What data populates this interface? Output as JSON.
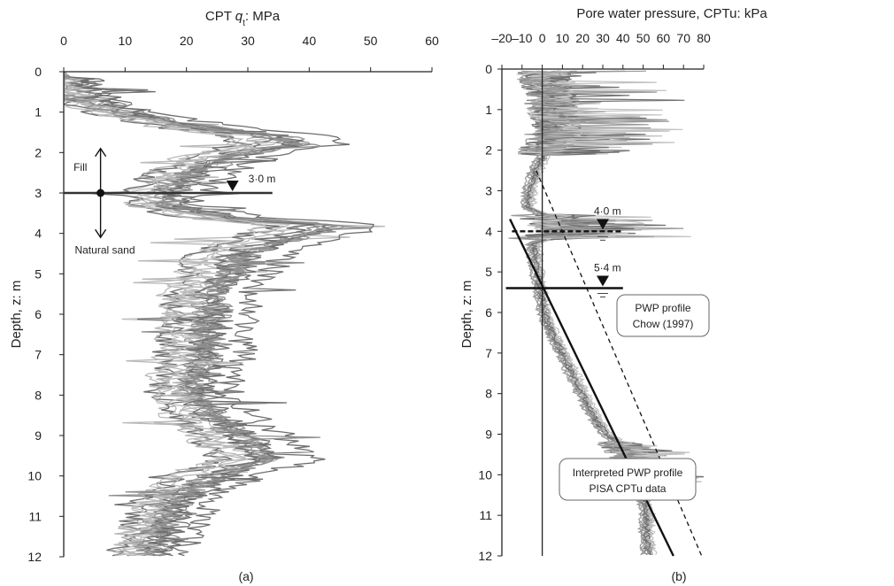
{
  "chart_data": [
    {
      "type": "line",
      "panel_label": "(a)",
      "title_prefix": "CPT ",
      "title_var": "q",
      "title_sub": "t",
      "title_suffix": ": MPa",
      "ylabel": "Depth, z: m",
      "xlim": [
        0,
        60
      ],
      "ylim": [
        12,
        0
      ],
      "xticks": [
        "0",
        "10",
        "20",
        "30",
        "40",
        "50",
        "60"
      ],
      "yticks": [
        "0",
        "1",
        "2",
        "3",
        "4",
        "5",
        "6",
        "7",
        "8",
        "9",
        "10",
        "11",
        "12"
      ],
      "colors": {
        "dark": "#6e6e6e",
        "mid": "#8f8f8f",
        "light": "#b9b9b9",
        "axis": "#222222",
        "marker": "#333333"
      },
      "water_table": {
        "depth": 3.0,
        "label": "3·0 m",
        "x_from": 0,
        "x_to": 34
      },
      "annotations": {
        "fill": "Fill",
        "natural": "Natural sand"
      },
      "mean_profile": [
        [
          0,
          0.8
        ],
        [
          0.4,
          2
        ],
        [
          0.7,
          5
        ],
        [
          1.0,
          10
        ],
        [
          1.3,
          20
        ],
        [
          1.6,
          36
        ],
        [
          1.8,
          38
        ],
        [
          2.1,
          28
        ],
        [
          2.5,
          22
        ],
        [
          2.8,
          19
        ],
        [
          3.0,
          18
        ],
        [
          3.3,
          17
        ],
        [
          3.6,
          28
        ],
        [
          3.8,
          45
        ],
        [
          4.1,
          38
        ],
        [
          4.5,
          30
        ],
        [
          5.0,
          28
        ],
        [
          5.5,
          25
        ],
        [
          6.0,
          25
        ],
        [
          6.5,
          24
        ],
        [
          7.0,
          24
        ],
        [
          7.5,
          23
        ],
        [
          8.0,
          22
        ],
        [
          8.5,
          25
        ],
        [
          9.0,
          30
        ],
        [
          9.3,
          32
        ],
        [
          9.6,
          34
        ],
        [
          10.0,
          26
        ],
        [
          10.5,
          20
        ],
        [
          11.0,
          18
        ],
        [
          11.5,
          16
        ],
        [
          12.0,
          15
        ]
      ],
      "series_count": 14
    },
    {
      "type": "line",
      "panel_label": "(b)",
      "title": "Pore water pressure, CPTu: kPa",
      "ylabel": "Depth, z: m",
      "xlim": [
        -20,
        80
      ],
      "ylim": [
        12,
        0
      ],
      "xticks": [
        "–20",
        "–10",
        "0",
        "10",
        "20",
        "30",
        "40",
        "50",
        "60",
        "70",
        "80"
      ],
      "yticks": [
        "0",
        "1",
        "2",
        "3",
        "4",
        "5",
        "6",
        "7",
        "8",
        "9",
        "10",
        "11",
        "12"
      ],
      "colors": {
        "dark": "#707070",
        "mid": "#999999",
        "light": "#c2c2c2",
        "axis": "#222222"
      },
      "water_tables": [
        {
          "depth": 4.0,
          "label": "4·0 m",
          "style": "dashed",
          "x_from": -15,
          "x_to": 40
        },
        {
          "depth": 5.4,
          "label": "5·4 m",
          "style": "solid",
          "x_from": -18,
          "x_to": 40
        }
      ],
      "reference_lines": [
        {
          "name": "PISA CPTu data",
          "style": "solid",
          "points": [
            [
              -16,
              3.7
            ],
            [
              65,
              12
            ]
          ]
        },
        {
          "name": "Chow (1997)",
          "style": "dashed",
          "points": [
            [
              -3,
              2.5
            ],
            [
              79,
              12
            ]
          ]
        }
      ],
      "callouts": {
        "pwp_chow": [
          "PWP profile",
          "Chow (1997)"
        ],
        "pwp_pisa": [
          "Interpreted PWP profile",
          "PISA CPTu data"
        ]
      },
      "mean_profile": [
        [
          0.1,
          1
        ],
        [
          0.5,
          3
        ],
        [
          1.0,
          6
        ],
        [
          1.5,
          8
        ],
        [
          2.0,
          2
        ],
        [
          2.5,
          -3
        ],
        [
          3.0,
          -6
        ],
        [
          3.4,
          -7
        ],
        [
          3.8,
          8
        ],
        [
          4.0,
          15
        ],
        [
          4.3,
          -4
        ],
        [
          4.8,
          -3
        ],
        [
          5.4,
          -1
        ],
        [
          6.0,
          1
        ],
        [
          6.5,
          5
        ],
        [
          7.0,
          10
        ],
        [
          7.5,
          15
        ],
        [
          8.0,
          20
        ],
        [
          8.5,
          25
        ],
        [
          9.0,
          32
        ],
        [
          9.5,
          45
        ],
        [
          10.0,
          48
        ],
        [
          10.5,
          50
        ],
        [
          11.0,
          52
        ],
        [
          11.5,
          52
        ],
        [
          12.0,
          53
        ]
      ],
      "series_count": 14
    }
  ]
}
